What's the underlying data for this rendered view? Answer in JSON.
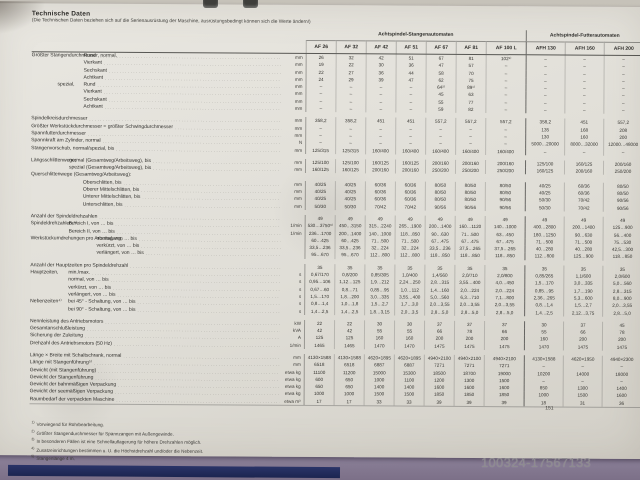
{
  "page": {
    "title": "Technische Daten",
    "subtitle": "(Die Technischen Daten beziehen sich auf die Serienausrüstung der Maschine, ausrüstungsbedingt können sich die Werte ändern!)",
    "page_number": "151",
    "watermark": "100324-17567133"
  },
  "table": {
    "groups": [
      {
        "label": "Achtspindel-Stangenautomaten",
        "span": 7
      },
      {
        "label": "Achtspindel-Futterautomaten",
        "span": 3
      }
    ],
    "columns": [
      "AF 26",
      "AF 32",
      "AF 42",
      "AF 51",
      "AF 67",
      "AF 81",
      "AF 100 L",
      "AFH 130",
      "AFH 160",
      "AFH 200"
    ],
    "rows": [
      {
        "head": "Größter Stangendurchmesser, normal,",
        "lvl": 3,
        "label": "Rund",
        "unit": "mm",
        "values": [
          "26",
          "32",
          "42",
          "51",
          "67",
          "81",
          "102¹⁾",
          "–",
          "–",
          "–"
        ]
      },
      {
        "lvl": 3,
        "label": "Vierkant",
        "unit": "mm",
        "values": [
          "19",
          "22",
          "30",
          "36",
          "47",
          "57",
          "–",
          "–",
          "–",
          "–"
        ]
      },
      {
        "lvl": 3,
        "label": "Sechskant",
        "unit": "mm",
        "values": [
          "22",
          "27",
          "36",
          "44",
          "58",
          "70",
          "–",
          "–",
          "–",
          "–"
        ]
      },
      {
        "lvl": 3,
        "label": "Achtkant",
        "unit": "mm",
        "values": [
          "24",
          "29",
          "39",
          "47",
          "62",
          "75",
          "–",
          "–",
          "–",
          "–"
        ]
      },
      {
        "head": "spezial,",
        "headLvl": 1,
        "lvl": 3,
        "label": "Rund",
        "unit": "mm",
        "values": [
          "–",
          "–",
          "–",
          "–",
          "64²⁾",
          "89¹⁾",
          "–",
          "–",
          "–",
          "–"
        ]
      },
      {
        "lvl": 3,
        "label": "Vierkant",
        "unit": "mm",
        "values": [
          "–",
          "–",
          "–",
          "–",
          "45",
          "63",
          "–",
          "–",
          "–",
          "–"
        ]
      },
      {
        "lvl": 3,
        "label": "Sechskant",
        "unit": "mm",
        "values": [
          "–",
          "–",
          "–",
          "–",
          "55",
          "77",
          "–",
          "–",
          "–",
          "–"
        ]
      },
      {
        "lvl": 3,
        "label": "Achtkant",
        "unit": "mm",
        "values": [
          "–",
          "–",
          "–",
          "–",
          "59",
          "82",
          "–",
          "–",
          "–",
          "–"
        ]
      },
      {
        "gap": 1,
        "lvl": 0,
        "label": "Spindelkreisdurchmesser",
        "unit": "mm",
        "values": [
          "358,2",
          "358,2",
          "451",
          "451",
          "557,2",
          "557,2",
          "557,2",
          "358,2",
          "451",
          "557,2"
        ]
      },
      {
        "lvl": 0,
        "label": "Größter Werkstückdurchmesser = größter Schwingdurchmesser",
        "unit": "mm",
        "values": [
          "–",
          "–",
          "–",
          "–",
          "–",
          "–",
          "–",
          "135",
          "168",
          "208"
        ]
      },
      {
        "lvl": 0,
        "label": "Spannfutterdurchmesser",
        "unit": "mm",
        "values": [
          "–",
          "–",
          "–",
          "–",
          "–",
          "–",
          "–",
          "130",
          "160",
          "200"
        ]
      },
      {
        "lvl": 0,
        "label": "Spannkraft am Zylinder, normal",
        "unit": "N",
        "values": [
          "–",
          "–",
          "–",
          "–",
          "–",
          "–",
          "–",
          "5000…20000",
          "8000…32000",
          "12000…48000"
        ]
      },
      {
        "lvl": 0,
        "label": "Stangenvorschub, normal/spezial, bis",
        "unit": "mm",
        "values": [
          "125/315",
          "125/315",
          "160/400",
          "160/400",
          "160/400",
          "160/400",
          "160/400",
          "–",
          "–",
          "–"
        ]
      },
      {
        "gap": 1,
        "head": "Längsschlittenwege,",
        "lvl": 2,
        "label": "normal (Gesamtweg/Arbeitsweg), bis",
        "unit": "mm",
        "values": [
          "125/100",
          "125/100",
          "160/125",
          "160/125",
          "200/160",
          "200/160",
          "200/160",
          "125/100",
          "160/125",
          "200/160"
        ]
      },
      {
        "lvl": 2,
        "label": "spezial (Gesamtweg/Arbeitsweg), bis",
        "unit": "mm",
        "values": [
          "160/125",
          "160/125",
          "200/160",
          "200/160",
          "250/200",
          "250/200",
          "250/200",
          "160/125",
          "200/160",
          "250/200"
        ]
      },
      {
        "lvl": 0,
        "label": "Querschlittenwege (Gesamtweg/Arbeitsweg):",
        "noLeaders": 1,
        "unit": "",
        "values": [
          "",
          "",
          "",
          "",
          "",
          "",
          "",
          "",
          "",
          ""
        ]
      },
      {
        "lvl": 3,
        "label": "Oberschlitten, bis",
        "unit": "mm",
        "values": [
          "40/25",
          "40/25",
          "60/36",
          "60/36",
          "80/50",
          "80/50",
          "80/50",
          "40/25",
          "60/36",
          "80/50"
        ]
      },
      {
        "lvl": 3,
        "label": "Oberer Mittelschlitten, bis",
        "unit": "mm",
        "values": [
          "40/25",
          "40/25",
          "60/36",
          "60/36",
          "80/50",
          "80/50",
          "80/50",
          "40/25",
          "60/36",
          "80/50"
        ]
      },
      {
        "lvl": 3,
        "label": "Unterer Mittelschlitten, bis",
        "unit": "mm",
        "values": [
          "40/25",
          "40/25",
          "60/36",
          "60/36",
          "80/50",
          "80/50",
          "90/56",
          "50/30",
          "70/42",
          "90/56"
        ]
      },
      {
        "lvl": 3,
        "label": "Unterschlitten, bis",
        "unit": "mm",
        "values": [
          "50/30",
          "50/30",
          "70/42",
          "70/42",
          "90/56",
          "90/56",
          "90/56",
          "50/30",
          "70/42",
          "90/56"
        ]
      },
      {
        "gap": 1,
        "lvl": 0,
        "label": "Anzahl der Spindeldrehzahlen",
        "unit": "",
        "values": [
          "49",
          "49",
          "49",
          "49",
          "49",
          "49",
          "49",
          "49",
          "49",
          "49"
        ]
      },
      {
        "head": "Spindeldrehzahlen,⁴⁾",
        "lvl": 2,
        "label": "Bereich I, von … bis",
        "unit": "1/min",
        "values": [
          "530…3750³⁾",
          "450…3150",
          "315…2240",
          "265…1900",
          "200…1400",
          "160…1120",
          "140…1000",
          "400…2800",
          "200…1400",
          "125…900"
        ]
      },
      {
        "lvl": 2,
        "label": "Bereich II, von … bis",
        "unit": "1/min",
        "values": [
          "236…1700",
          "200…1400",
          "140…1000",
          "118…850",
          "90…630",
          "71…500",
          "63…450",
          "180…1250",
          "90…630",
          "56…400"
        ]
      },
      {
        "head": "Werkstückumdrehungen pro Arbeitsgang,",
        "lvl": 4,
        "label": "normal, von … bis",
        "unit": "",
        "values": [
          "60…425",
          "60…425",
          "71…500",
          "71…500",
          "67…475",
          "67…475",
          "67…475",
          "71…500",
          "71…500",
          "75…530"
        ]
      },
      {
        "lvl": 4,
        "label": "verkürzt, von … bis",
        "unit": "",
        "values": [
          "33,5…236",
          "33,5…236",
          "32…224",
          "32…224",
          "33,5…236",
          "37,5…265",
          "37,5…265",
          "40…280",
          "40…280",
          "42,5…300"
        ]
      },
      {
        "lvl": 4,
        "label": "verlängert, von … bis",
        "unit": "",
        "values": [
          "95…670",
          "95…670",
          "112…800",
          "112…800",
          "118…850",
          "118…850",
          "118…850",
          "112…800",
          "125…900",
          "118…850"
        ]
      },
      {
        "gap": 1,
        "lvl": 0,
        "label": "Anzahl der Hauptzeiten pro Spindeldrehzahl",
        "unit": "",
        "values": [
          "35",
          "35",
          "35",
          "35",
          "35",
          "35",
          "35",
          "35",
          "35",
          "35"
        ]
      },
      {
        "head": "Hauptzeiten,",
        "lvl": 2,
        "label": "min./max.",
        "unit": "s",
        "values": [
          "0,67/170",
          "0,8/200",
          "0,85/305",
          "1,0/400",
          "1,4/560",
          "2,0/710",
          "2,0/800",
          "0,85/265",
          "1,1/600",
          "2,0/600"
        ]
      },
      {
        "lvl": 2,
        "label": "normal, von … bis",
        "unit": "s",
        "values": [
          "0,95…106",
          "1,12…125",
          "1,9…212",
          "2,24…250",
          "2,8…315",
          "3,55…400",
          "4,0…450",
          "1,5…170",
          "3,0…335",
          "5,0…560"
        ]
      },
      {
        "lvl": 2,
        "label": "verkürzt, von … bis",
        "unit": "s",
        "values": [
          "0,67…60",
          "0,8…71",
          "0,85…95",
          "1,0…112",
          "1,4…160",
          "2,0…224",
          "2,0…224",
          "0,85…95",
          "1,7…190",
          "2,8…315"
        ]
      },
      {
        "lvl": 2,
        "label": "verlängert, von … bis",
        "unit": "s",
        "values": [
          "1,5…170",
          "1,8…200",
          "3,0…335",
          "3,55…400",
          "5,0…560",
          "6,3…710",
          "7,1…800",
          "2,36…265",
          "5,3…600",
          "8,0…900"
        ]
      },
      {
        "head": "Nebenzeiten⁴⁾",
        "lvl": 2,
        "label": "bei 45° - Schaltung, von … bis",
        "unit": "s",
        "values": [
          "0,8…1,4",
          "1,0…1,8",
          "1,5…2,7",
          "1,7…3,0",
          "2,0…3,55",
          "2,0…3,55",
          "2,0…3,55",
          "0,8…1,4",
          "1,5…2,7",
          "2,0…3,55"
        ]
      },
      {
        "lvl": 2,
        "label": "bei 90° - Schaltung, von … bis",
        "unit": "s",
        "values": [
          "1,4…2,5",
          "1,4…2,5",
          "1,8…3,15",
          "2,0…3,5",
          "2,8…5,0",
          "2,8…5,0",
          "2,8…5,0",
          "1,4…2,5",
          "2,12…3,75",
          "2,8…5,0"
        ]
      },
      {
        "gap": 1,
        "lvl": 0,
        "label": "Nennleistung des Antriebsmotors",
        "unit": "kW",
        "values": [
          "22",
          "22",
          "30",
          "30",
          "37",
          "37",
          "37",
          "30",
          "37",
          "45"
        ]
      },
      {
        "lvl": 0,
        "label": "Gesamtanschlußleistung",
        "unit": "kVA",
        "values": [
          "42",
          "42",
          "55",
          "55",
          "66",
          "78",
          "66",
          "55",
          "66",
          "78"
        ]
      },
      {
        "lvl": 0,
        "label": "Sicherung der Zuleitung",
        "unit": "A",
        "values": [
          "125",
          "125",
          "160",
          "160",
          "200",
          "200",
          "200",
          "160",
          "200",
          "200"
        ]
      },
      {
        "lvl": 0,
        "label": "Drehzahl des Antriebsmotors (50 Hz)",
        "unit": "1/min",
        "values": [
          "1465",
          "1465",
          "1470",
          "1470",
          "1475",
          "1475",
          "1475",
          "1470",
          "1475",
          "1475"
        ]
      },
      {
        "gap": 1,
        "lvl": 0,
        "label": "Länge × Breite mit Schaltschrank, normal",
        "unit": "mm",
        "values": [
          "4130×1588",
          "4130×1588",
          "4620×1895",
          "4620×1895",
          "4940×2100",
          "4940×2100",
          "4940×2100",
          "4130×1588",
          "4620×1950",
          "4940×2300"
        ]
      },
      {
        "lvl": 0,
        "label": "Länge mit Stangenführung⁵⁾",
        "unit": "mm",
        "values": [
          "6518",
          "6518",
          "6887",
          "6887",
          "7271",
          "7271",
          "7271",
          "–",
          "–",
          "–"
        ]
      },
      {
        "lvl": 0,
        "label": "Gewicht (mit Stangenführung)",
        "unit": "etwa kg",
        "values": [
          "11100",
          "11200",
          "15000",
          "15300",
          "18500",
          "18700",
          "19000",
          "10200",
          "14000",
          "18000"
        ]
      },
      {
        "lvl": 0,
        "label": "Gewicht der Stangenführung",
        "unit": "etwa kg",
        "values": [
          "600",
          "650",
          "1000",
          "1100",
          "1200",
          "1300",
          "1500",
          "–",
          "–",
          "–"
        ]
      },
      {
        "lvl": 0,
        "label": "Gewicht der bahnmäßigen Verpackung",
        "unit": "etwa kg",
        "values": [
          "650",
          "650",
          "1400",
          "1400",
          "1600",
          "1600",
          "1600",
          "850",
          "1300",
          "1400"
        ]
      },
      {
        "lvl": 0,
        "label": "Gewicht der seemäßigen Verpackung",
        "unit": "etwa kg",
        "values": [
          "1000",
          "1000",
          "1500",
          "1500",
          "1850",
          "1850",
          "1850",
          "1000",
          "1500",
          "1600"
        ]
      },
      {
        "lvl": 0,
        "label": "Raumbedarf der verpackten Maschine",
        "unit": "etwa m³",
        "values": [
          "17",
          "17",
          "33",
          "33",
          "39",
          "39",
          "39",
          "18",
          "31",
          "36"
        ]
      }
    ]
  },
  "footnotes": [
    {
      "marker": "1)",
      "text": "Vorwiegend für Rohrbearbeitung."
    },
    {
      "marker": "2)",
      "text": "Größter Stangendurchmesser für Spannzangen mit Außengewinde."
    },
    {
      "marker": "3)",
      "text": "In besonderen Fällen ist eine Schnellauflagerung für höhere Drehzahlen möglich."
    },
    {
      "marker": "4)",
      "text": "Zusatzeinrichtungen bestimmen u. U. die Höchstdrehzahl und/oder die Nebenzeit."
    },
    {
      "marker": "5)",
      "text": "Stangenlänge 4 m."
    }
  ]
}
